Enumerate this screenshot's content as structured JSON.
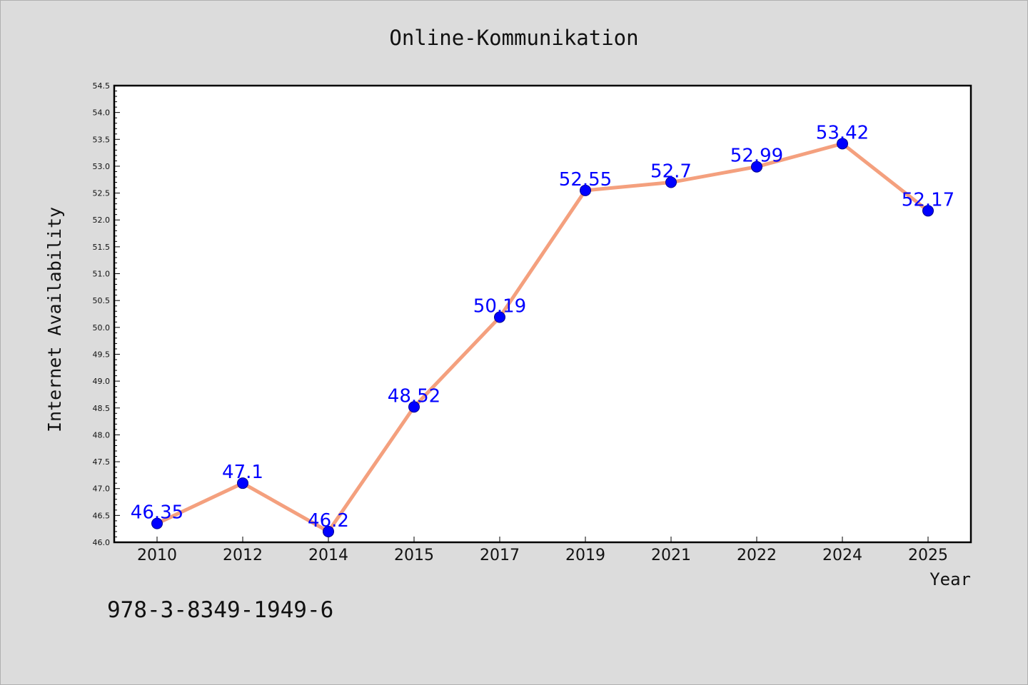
{
  "chart_data": {
    "type": "line",
    "title": "Online-Kommunikation",
    "xlabel": "Year",
    "ylabel": "Internet Availability",
    "categories": [
      "2010",
      "2012",
      "2014",
      "2015",
      "2017",
      "2019",
      "2021",
      "2022",
      "2024",
      "2025"
    ],
    "series": [
      {
        "values": [
          46.35,
          47.1,
          46.2,
          48.52,
          50.19,
          52.55,
          52.7,
          52.99,
          53.42,
          52.17
        ],
        "labels": [
          "46.35",
          "47.1",
          "46.2",
          "48.52",
          "50.19",
          "52.55",
          "52.7",
          "52.99",
          "53.42",
          "52.17"
        ],
        "line_color": "#f4a07e",
        "marker_color": "#0000ff",
        "label_color": "#0000ff"
      }
    ],
    "ylim": [
      46.0,
      54.5
    ],
    "yticks": [
      "46.0",
      "46.5",
      "47.0",
      "47.5",
      "48.0",
      "48.5",
      "49.0",
      "49.5",
      "50.0",
      "50.5",
      "51.0",
      "51.5",
      "52.0",
      "52.5",
      "53.0",
      "53.5",
      "54.0",
      "54.5"
    ],
    "grid": false,
    "legend": "none"
  },
  "footer_text": "978-3-8349-1949-6"
}
